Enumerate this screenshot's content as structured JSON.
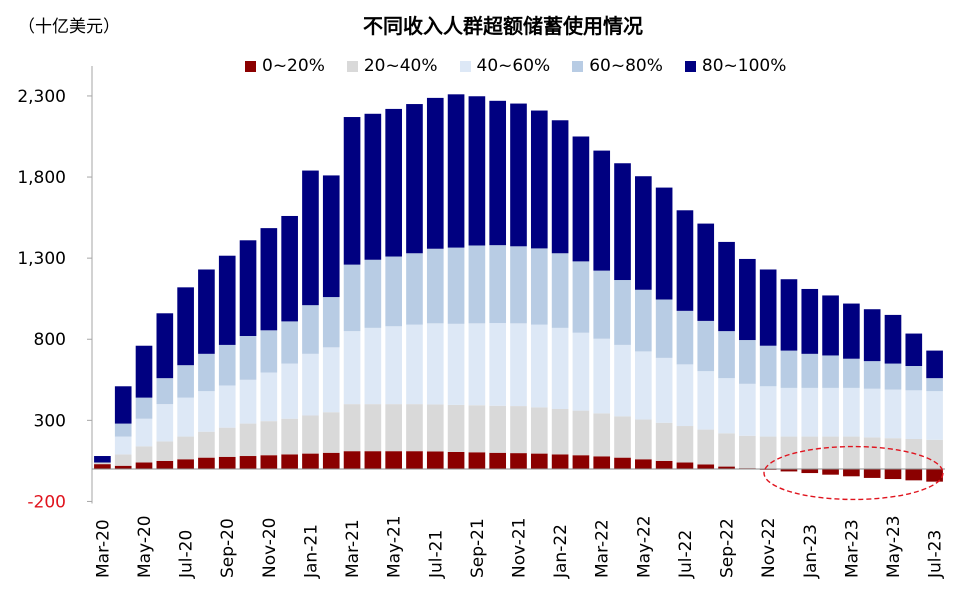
{
  "unit_label": "（十亿美元）",
  "chart_data": {
    "type": "bar",
    "stacked": true,
    "title": "不同收入人群超额储蓄使用情况",
    "xlabel": "",
    "ylabel": "",
    "ylim": [
      -200,
      2500
    ],
    "yticks": [
      -200,
      300,
      800,
      1300,
      1800,
      2300
    ],
    "ytick_labels": [
      "-200",
      "300",
      "800",
      "1,300",
      "1,800",
      "2,300"
    ],
    "negative_tick_color": "#e0141e",
    "legend_position": "top",
    "grid": false,
    "categories": [
      "Mar-20",
      "Apr-20",
      "May-20",
      "Jun-20",
      "Jul-20",
      "Aug-20",
      "Sep-20",
      "Oct-20",
      "Nov-20",
      "Dec-20",
      "Jan-21",
      "Feb-21",
      "Mar-21",
      "Apr-21",
      "May-21",
      "Jun-21",
      "Jul-21",
      "Aug-21",
      "Sep-21",
      "Oct-21",
      "Nov-21",
      "Dec-21",
      "Jan-22",
      "Feb-22",
      "Mar-22",
      "Apr-22",
      "May-22",
      "Jun-22",
      "Jul-22",
      "Aug-22",
      "Sep-22",
      "Oct-22",
      "Nov-22",
      "Dec-22",
      "Jan-23",
      "Feb-23",
      "Mar-23",
      "Apr-23",
      "May-23",
      "Jun-23",
      "Jul-23"
    ],
    "xtick_labels": [
      "Mar-20",
      "May-20",
      "Jul-20",
      "Sep-20",
      "Nov-20",
      "Jan-21",
      "Mar-21",
      "May-21",
      "Jul-21",
      "Sep-21",
      "Nov-21",
      "Jan-22",
      "Mar-22",
      "May-22",
      "Jul-22",
      "Sep-22",
      "Nov-22",
      "Jan-23",
      "Mar-23",
      "May-23",
      "Jul-23"
    ],
    "series": [
      {
        "name": "0~20%",
        "color": "#8b0000",
        "values": [
          30,
          20,
          40,
          50,
          60,
          70,
          75,
          80,
          85,
          90,
          95,
          100,
          110,
          110,
          110,
          110,
          108,
          105,
          103,
          100,
          98,
          95,
          90,
          85,
          78,
          70,
          60,
          50,
          40,
          28,
          15,
          5,
          -5,
          -15,
          -25,
          -35,
          -45,
          -55,
          -62,
          -70,
          -78
        ]
      },
      {
        "name": "20~40%",
        "color": "#d9d9d9",
        "values": [
          10,
          70,
          100,
          120,
          140,
          160,
          180,
          200,
          210,
          220,
          235,
          250,
          290,
          290,
          290,
          290,
          290,
          290,
          290,
          290,
          290,
          285,
          280,
          275,
          265,
          255,
          245,
          235,
          225,
          215,
          205,
          200,
          200,
          200,
          200,
          200,
          200,
          195,
          190,
          185,
          180
        ]
      },
      {
        "name": "40~60%",
        "color": "#dde8f6",
        "values": [
          0,
          110,
          170,
          230,
          240,
          250,
          260,
          270,
          300,
          340,
          380,
          400,
          450,
          470,
          480,
          490,
          500,
          500,
          505,
          510,
          510,
          510,
          500,
          480,
          460,
          440,
          420,
          400,
          380,
          360,
          340,
          320,
          310,
          300,
          300,
          300,
          300,
          300,
          300,
          300,
          300
        ]
      },
      {
        "name": "60~80%",
        "color": "#b8cce4",
        "values": [
          0,
          80,
          130,
          160,
          200,
          230,
          250,
          270,
          260,
          260,
          300,
          310,
          410,
          420,
          430,
          440,
          460,
          470,
          480,
          480,
          475,
          470,
          460,
          440,
          420,
          400,
          380,
          360,
          330,
          310,
          290,
          270,
          250,
          230,
          210,
          200,
          180,
          170,
          160,
          150,
          80
        ]
      },
      {
        "name": "80~100%",
        "color": "#000080",
        "values": [
          40,
          230,
          320,
          400,
          480,
          520,
          550,
          590,
          630,
          650,
          830,
          750,
          910,
          900,
          910,
          920,
          930,
          945,
          920,
          890,
          880,
          850,
          820,
          770,
          740,
          720,
          700,
          690,
          620,
          600,
          550,
          500,
          470,
          440,
          400,
          370,
          340,
          320,
          300,
          200,
          170
        ]
      }
    ],
    "annotations": [
      {
        "type": "ellipse",
        "style": "dashed",
        "color": "#e0141e",
        "x_from": "Nov-22",
        "x_to": "Jul-23",
        "y_from": -200,
        "y_to": 200
      }
    ]
  }
}
